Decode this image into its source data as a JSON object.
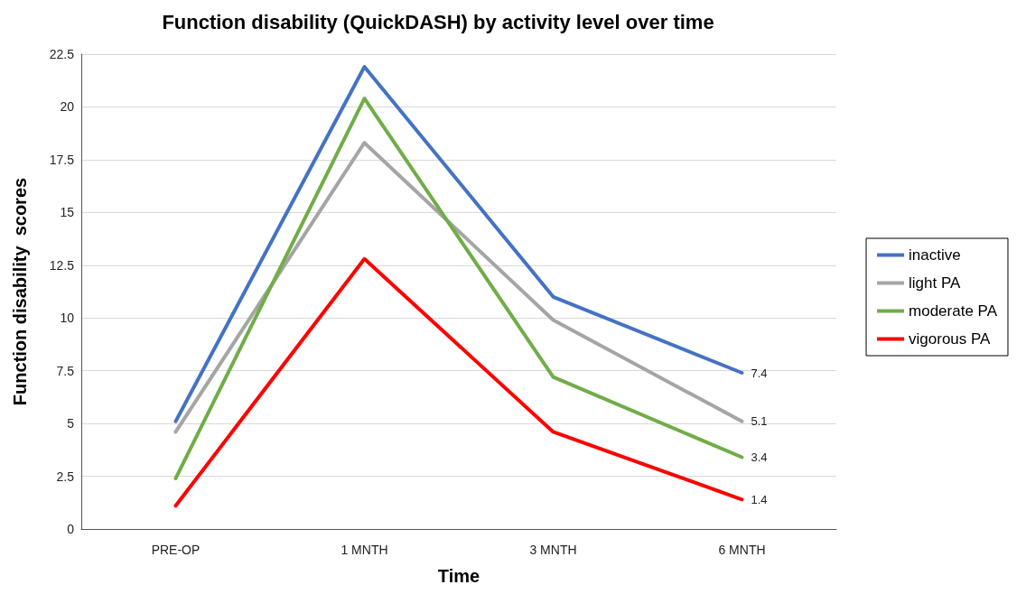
{
  "chart_data": {
    "type": "line",
    "title": "Function disability (QuickDASH) by activity level over time",
    "xlabel": "Time",
    "ylabel": "Function disability  scores",
    "categories": [
      "PRE-OP",
      "1 MNTH",
      "3 MNTH",
      "6 MNTH"
    ],
    "series": [
      {
        "name": "inactive",
        "color": "#4472c4",
        "values": [
          5.1,
          21.9,
          11.0,
          7.4
        ],
        "value_labels": [
          null,
          null,
          null,
          "7.4"
        ]
      },
      {
        "name": "light PA",
        "color": "#a5a5a5",
        "values": [
          4.6,
          18.3,
          9.9,
          5.1
        ],
        "value_labels": [
          null,
          null,
          null,
          "5.1"
        ]
      },
      {
        "name": "moderate PA",
        "color": "#70ad47",
        "values": [
          2.4,
          20.4,
          7.2,
          3.4
        ],
        "value_labels": [
          null,
          null,
          null,
          "3.4"
        ]
      },
      {
        "name": "vigorous PA",
        "color": "#ff0000",
        "values": [
          1.1,
          12.8,
          4.6,
          1.4
        ],
        "value_labels": [
          null,
          null,
          null,
          "1.4"
        ]
      }
    ],
    "ylim": [
      0,
      22.5
    ],
    "yticks": [
      0,
      2.5,
      5,
      7.5,
      10,
      12.5,
      15,
      17.5,
      20,
      22.5
    ],
    "grid": "y",
    "legend": "right",
    "marker": "none",
    "line_style": "solid"
  }
}
